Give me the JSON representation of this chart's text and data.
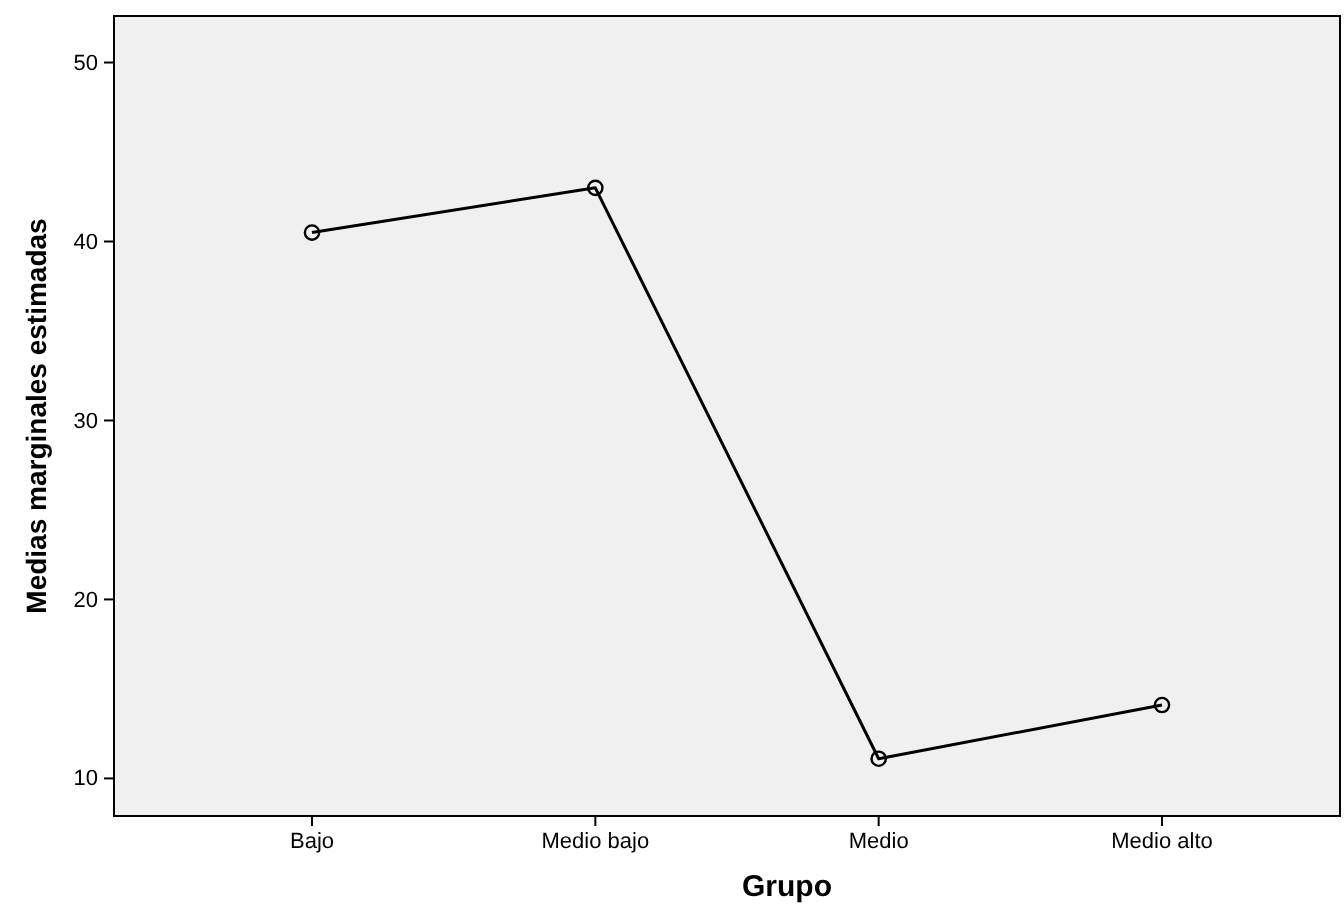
{
  "chart_data": {
    "type": "line",
    "xlabel": "Grupo",
    "ylabel": "Medias marginales estimadas",
    "categories": [
      "Bajo",
      "Medio bajo",
      "Medio",
      "Medio alto"
    ],
    "series": [
      {
        "color": "#000000",
        "values": [
          40.5,
          43.0,
          11.1,
          14.1
        ]
      }
    ],
    "ylim": [
      7.9,
      52.6
    ],
    "yticks": [
      10,
      20,
      30,
      40,
      50
    ],
    "marker": "circle",
    "line_style": "solid",
    "grid": false
  }
}
